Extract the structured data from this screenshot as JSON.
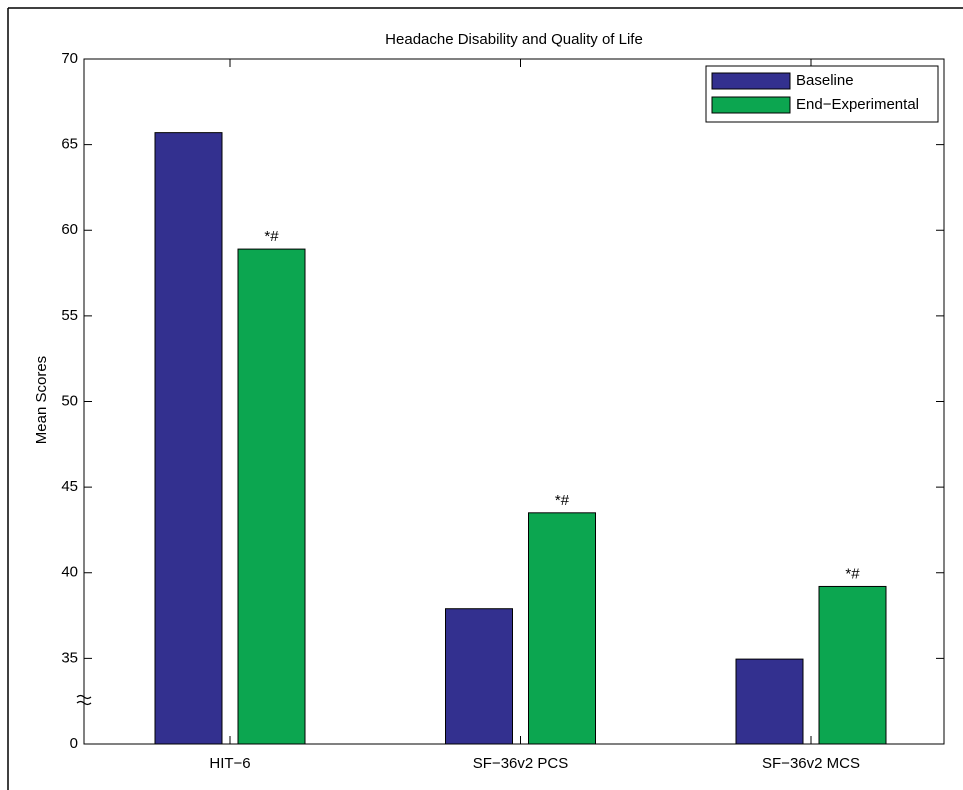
{
  "chart_data": {
    "type": "bar",
    "title": "Headache Disability and Quality of Life",
    "y_label": "Mean Scores",
    "categories": [
      "HIT−6",
      "SF−36v2 PCS",
      "SF−36v2 MCS"
    ],
    "series": [
      {
        "name": "Baseline",
        "color": "#33308f",
        "values": [
          65.7,
          37.9,
          34.7
        ]
      },
      {
        "name": "End−Experimental",
        "color": "#0ca650",
        "values": [
          58.9,
          43.5,
          39.2
        ],
        "annotations": [
          "*#",
          "*#",
          "*#"
        ]
      }
    ],
    "ylim": [
      0,
      70
    ],
    "yticks": [
      0,
      35,
      40,
      45,
      50,
      55,
      60,
      65,
      70
    ],
    "legend": "upper right"
  }
}
